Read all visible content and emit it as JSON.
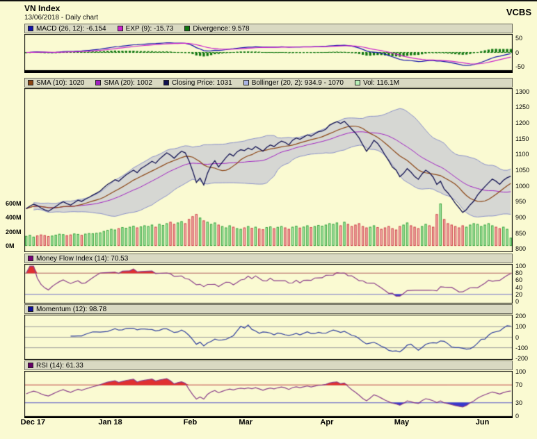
{
  "header": {
    "title": "VN Index",
    "subtitle": "13/06/2018 - Daily chart",
    "brand": "VCBS"
  },
  "x_axis": {
    "labels": [
      {
        "text": "Dec 17",
        "index": 0
      },
      {
        "text": "Jan 18",
        "index": 21
      },
      {
        "text": "Feb",
        "index": 44
      },
      {
        "text": "Mar",
        "index": 59
      },
      {
        "text": "Apr",
        "index": 81
      },
      {
        "text": "May",
        "index": 101
      },
      {
        "text": "Jun",
        "index": 123
      }
    ]
  },
  "panels": [
    {
      "id": "macd",
      "legend": [
        {
          "swatch": "#1111aa",
          "label": "MACD (26, 12): -6.154"
        },
        {
          "swatch": "#cc22cc",
          "label": "EXP (9): -15.73"
        },
        {
          "swatch": "#117711",
          "label": "Divergence: 9.578"
        }
      ],
      "y_ticks": [
        50,
        0,
        -50
      ],
      "y_domain": [
        -65,
        65
      ],
      "zero_line_color": "#117711"
    },
    {
      "id": "price",
      "legend": [
        {
          "swatch": "#8b4513",
          "label": "SMA (10): 1020"
        },
        {
          "swatch": "#a020c0",
          "label": "SMA (20): 1002"
        },
        {
          "swatch": "#101050",
          "label": "Closing Price: 1031"
        },
        {
          "swatch": "#aab4e4",
          "label": "Bollinger (20, 2): 934.9 - 1070"
        },
        {
          "swatch": "#b6eeb6",
          "label": "Vol: 116.1M"
        }
      ],
      "y_ticks": [
        1300,
        1250,
        1200,
        1150,
        1100,
        1050,
        1000,
        950,
        900,
        850,
        800
      ],
      "y_domain": [
        790,
        1310
      ],
      "vol_ticks": [
        {
          "label": "600M",
          "value": 600
        },
        {
          "label": "400M",
          "value": 400
        },
        {
          "label": "200M",
          "value": 200
        },
        {
          "label": "0M",
          "value": 0
        }
      ],
      "band_fill": "rgba(145,150,215,0.35)",
      "band_edge": "#8a90c8",
      "vol_up_fill": "#b8efb8",
      "vol_up_stroke": "#3aa33a",
      "vol_down_fill": "#f6bcbc",
      "vol_down_stroke": "#cc4444"
    },
    {
      "id": "mfi",
      "legend": [
        {
          "swatch": "#770077",
          "label": "Money Flow Index (14): 70.53"
        }
      ],
      "y_ticks": [
        100,
        80,
        60,
        40,
        20,
        0
      ],
      "y_domain": [
        -6,
        106
      ],
      "upper": 80,
      "lower": 20,
      "line_color": "#8a3d8a",
      "upper_color": "#b06060",
      "lower_color": "#7070c8",
      "over_fill": "#e03030",
      "under_fill": "#3838cc"
    },
    {
      "id": "momentum",
      "legend": [
        {
          "swatch": "#101099",
          "label": "Momentum (12): 98.78"
        }
      ],
      "y_ticks": [
        200,
        100,
        0,
        -100,
        -200
      ],
      "y_domain": [
        -215,
        215
      ],
      "grid": [
        100,
        0,
        -100
      ],
      "grid_color": "#9a9a9a",
      "line_color": "#2f3f9f"
    },
    {
      "id": "rsi",
      "legend": [
        {
          "swatch": "#660066",
          "label": "RSI (14): 61.33"
        }
      ],
      "y_ticks": [
        100,
        70,
        30,
        0
      ],
      "y_domain": [
        -1.5,
        101.5
      ],
      "upper": 70,
      "lower": 30,
      "line_color": "#8a3d8a",
      "upper_color": "#c04848",
      "lower_color": "#5858c8",
      "over_fill": "#e03030",
      "under_fill": "#3838cc"
    }
  ],
  "chart_data": {
    "type": "line",
    "title": "VN Index",
    "date": "13/06/2018",
    "timeframe": "Daily",
    "n_points": 132,
    "month_start_index": [
      0,
      21,
      44,
      59,
      81,
      101,
      123
    ],
    "month_labels": [
      "Dec 17",
      "Jan 18",
      "Feb",
      "Mar",
      "Apr",
      "May",
      "Jun"
    ],
    "price_axis": {
      "min": 800,
      "max": 1300,
      "tick_step": 50
    },
    "volume_axis_millions": {
      "ticks": [
        600,
        400,
        200,
        0
      ]
    },
    "close": [
      928,
      936,
      942,
      938,
      930,
      924,
      920,
      927,
      935,
      943,
      950,
      944,
      939,
      947,
      955,
      951,
      958,
      964,
      971,
      977,
      984,
      995,
      1005,
      1012,
      1020,
      1015,
      1025,
      1035,
      1043,
      1050,
      1042,
      1055,
      1062,
      1070,
      1078,
      1072,
      1085,
      1095,
      1105,
      1098,
      1088,
      1100,
      1110,
      1105,
      1080,
      1048,
      1011,
      1025,
      1003,
      1040,
      1065,
      1080,
      1060,
      1075,
      1090,
      1102,
      1095,
      1108,
      1115,
      1112,
      1120,
      1115,
      1125,
      1118,
      1110,
      1122,
      1130,
      1125,
      1135,
      1142,
      1138,
      1130,
      1145,
      1152,
      1148,
      1155,
      1162,
      1158,
      1165,
      1172,
      1174,
      1180,
      1193,
      1199,
      1204,
      1198,
      1205,
      1193,
      1180,
      1168,
      1152,
      1130,
      1110,
      1125,
      1145,
      1135,
      1118,
      1098,
      1080,
      1060,
      1050,
      1029,
      1040,
      1055,
      1044,
      1030,
      1021,
      1038,
      1050,
      1042,
      1028,
      1005,
      1015,
      990,
      978,
      962,
      945,
      931,
      916,
      925,
      940,
      952,
      971,
      985,
      998,
      1010,
      1022,
      1015,
      1005,
      1018,
      1026,
      1031
    ],
    "volume_millions": [
      140,
      155,
      130,
      148,
      160,
      152,
      138,
      145,
      158,
      170,
      165,
      150,
      160,
      175,
      168,
      155,
      172,
      180,
      178,
      185,
      190,
      210,
      225,
      240,
      230,
      250,
      265,
      255,
      270,
      285,
      260,
      275,
      290,
      280,
      300,
      270,
      310,
      295,
      320,
      340,
      310,
      330,
      350,
      320,
      380,
      420,
      450,
      400,
      360,
      340,
      310,
      330,
      300,
      280,
      260,
      290,
      270,
      250,
      240,
      260,
      280,
      255,
      270,
      245,
      235,
      265,
      275,
      250,
      268,
      280,
      260,
      240,
      270,
      285,
      258,
      272,
      290,
      265,
      280,
      295,
      285,
      300,
      320,
      310,
      330,
      290,
      340,
      310,
      280,
      300,
      320,
      280,
      260,
      270,
      290,
      265,
      240,
      260,
      280,
      250,
      230,
      280,
      300,
      330,
      290,
      270,
      250,
      280,
      310,
      290,
      270,
      450,
      600,
      380,
      320,
      300,
      280,
      260,
      290,
      270,
      300,
      320,
      310,
      280,
      300,
      320,
      290,
      270,
      250,
      270,
      240,
      116
    ],
    "indicators": {
      "sma10_last": 1020,
      "sma20_last": 1002,
      "close_last": 1031,
      "bollinger_last_low": 934.9,
      "bollinger_last_high": 1070,
      "volume_last_millions": 116.1,
      "macd_last": -6.154,
      "macd_signal_last": -15.73,
      "macd_divergence_last": 9.578,
      "mfi_last": 70.53,
      "momentum_last": 98.78,
      "rsi_last": 61.33
    }
  }
}
